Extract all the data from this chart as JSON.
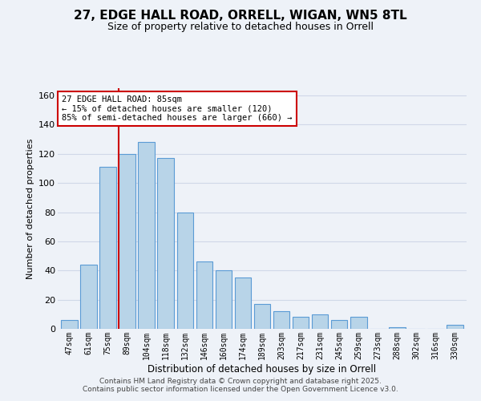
{
  "title": "27, EDGE HALL ROAD, ORRELL, WIGAN, WN5 8TL",
  "subtitle": "Size of property relative to detached houses in Orrell",
  "xlabel": "Distribution of detached houses by size in Orrell",
  "ylabel": "Number of detached properties",
  "categories": [
    "47sqm",
    "61sqm",
    "75sqm",
    "89sqm",
    "104sqm",
    "118sqm",
    "132sqm",
    "146sqm",
    "160sqm",
    "174sqm",
    "189sqm",
    "203sqm",
    "217sqm",
    "231sqm",
    "245sqm",
    "259sqm",
    "273sqm",
    "288sqm",
    "302sqm",
    "316sqm",
    "330sqm"
  ],
  "values": [
    6,
    44,
    111,
    120,
    128,
    117,
    80,
    46,
    40,
    35,
    17,
    12,
    8,
    10,
    6,
    8,
    0,
    1,
    0,
    0,
    3
  ],
  "bar_color": "#b8d4e8",
  "bar_edge_color": "#5b9bd5",
  "vline_color": "#cc0000",
  "vline_x": 2.575,
  "ylim": [
    0,
    165
  ],
  "yticks": [
    0,
    20,
    40,
    60,
    80,
    100,
    120,
    140,
    160
  ],
  "annotation_title": "27 EDGE HALL ROAD: 85sqm",
  "annotation_line1": "← 15% of detached houses are smaller (120)",
  "annotation_line2": "85% of semi-detached houses are larger (660) →",
  "annotation_box_color": "#ffffff",
  "annotation_box_edge": "#cc0000",
  "grid_color": "#d0d8e8",
  "background_color": "#eef2f8",
  "footer_line1": "Contains HM Land Registry data © Crown copyright and database right 2025.",
  "footer_line2": "Contains public sector information licensed under the Open Government Licence v3.0."
}
